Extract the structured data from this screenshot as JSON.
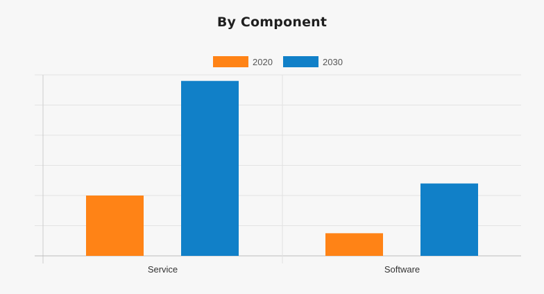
{
  "chart_data": {
    "type": "bar",
    "title": "By Component",
    "xlabel": "",
    "ylabel": "",
    "categories": [
      "Service",
      "Software"
    ],
    "series": [
      {
        "name": "2020",
        "color": "#ff8316",
        "values": [
          2.0,
          0.75
        ]
      },
      {
        "name": "2030",
        "color": "#1180c8",
        "values": [
          5.8,
          2.4
        ]
      }
    ],
    "ylim": [
      0,
      6
    ],
    "y_grid_step": 1,
    "y_tick_labels_shown": false,
    "grid": true,
    "legend_position": "top-center"
  }
}
